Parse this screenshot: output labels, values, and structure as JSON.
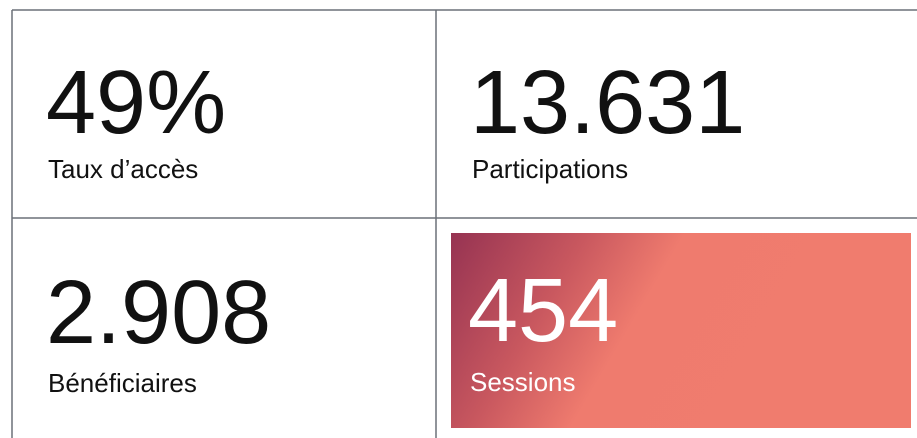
{
  "tiles": [
    {
      "value": "49%",
      "label": "Taux d’accès"
    },
    {
      "value": "13.631",
      "label": "Participations"
    },
    {
      "value": "2.908",
      "label": "Bénéficiaires"
    },
    {
      "value": "454",
      "label": "Sessions"
    }
  ]
}
